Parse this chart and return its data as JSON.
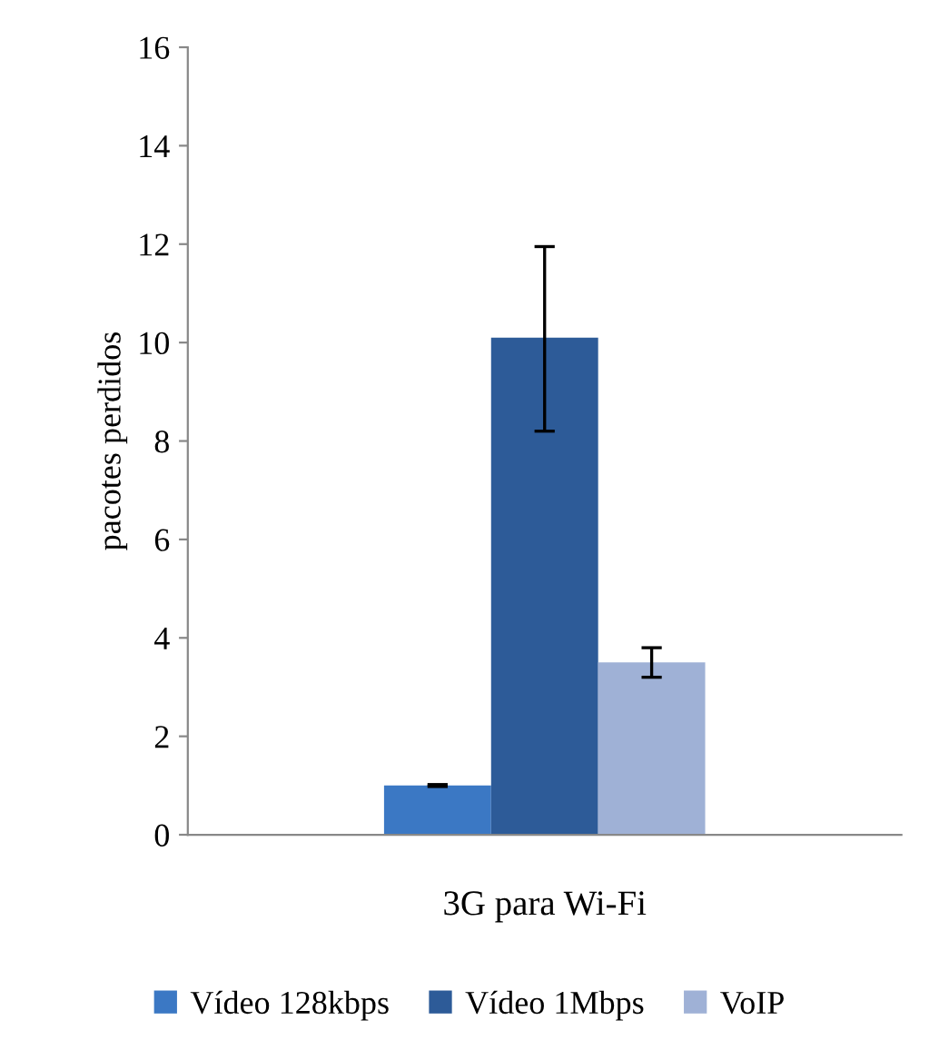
{
  "chart_data": {
    "type": "bar",
    "ylabel": "pacotes perdidos",
    "categories": [
      "3G para Wi-Fi"
    ],
    "series": [
      {
        "name": "Vídeo 128kbps",
        "color": "#3b78c4",
        "values": [
          1.0
        ],
        "errors": [
          [
            0.98,
            1.02
          ]
        ]
      },
      {
        "name": "Vídeo 1Mbps",
        "color": "#2d5b98",
        "values": [
          10.1
        ],
        "errors": [
          [
            8.2,
            11.95
          ]
        ]
      },
      {
        "name": "VoIP",
        "color": "#9fb1d6",
        "values": [
          3.5
        ],
        "errors": [
          [
            3.2,
            3.8
          ]
        ]
      }
    ],
    "ylim": [
      0,
      16
    ],
    "yticks": [
      0,
      2,
      4,
      6,
      8,
      10,
      12,
      14,
      16
    ],
    "grid": false,
    "legend": "bottom"
  }
}
